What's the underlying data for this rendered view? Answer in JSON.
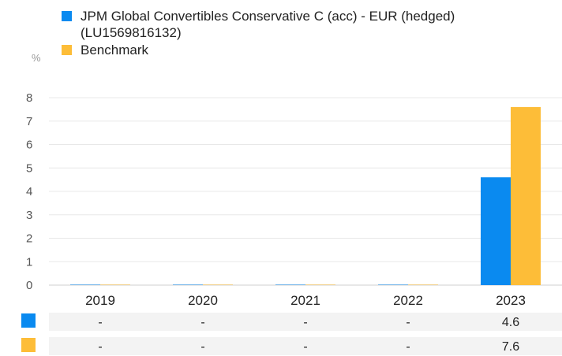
{
  "legend": {
    "series1_line1": "JPM Global Convertibles Conservative C (acc) - EUR (hedged)",
    "series1_line2": "(LU1569816132)",
    "series2": "Benchmark"
  },
  "unit_label": "%",
  "colors": {
    "fund": "#0A8AF0",
    "benchmark": "#FDBD38",
    "grid": "#E8E8E8",
    "row_band": "#F3F3F3"
  },
  "chart_data": {
    "type": "bar",
    "categories": [
      "2019",
      "2020",
      "2021",
      "2022",
      "2023"
    ],
    "series": [
      {
        "name": "JPM Global Convertibles Conservative C (acc) - EUR (hedged) (LU1569816132)",
        "values": [
          null,
          null,
          null,
          null,
          4.6
        ]
      },
      {
        "name": "Benchmark",
        "values": [
          null,
          null,
          null,
          null,
          7.6
        ]
      }
    ],
    "ylabel": "%",
    "ylim": [
      0,
      8
    ],
    "yticks": [
      0,
      1,
      2,
      3,
      4,
      5,
      6,
      7,
      8
    ],
    "grid": true,
    "legend_position": "top"
  },
  "table": {
    "rows": [
      [
        "-",
        "-",
        "-",
        "-",
        "4.6"
      ],
      [
        "-",
        "-",
        "-",
        "-",
        "7.6"
      ]
    ]
  }
}
